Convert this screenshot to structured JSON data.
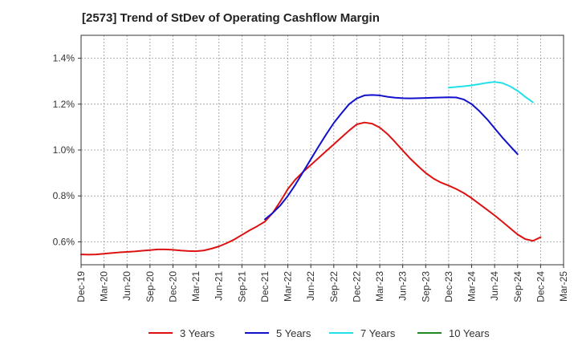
{
  "chart_data": {
    "type": "line",
    "title": "[2573]  Trend of StDev of Operating Cashflow Margin",
    "xlabel": "",
    "ylabel": "",
    "ylim": [
      0.5,
      1.5
    ],
    "y_ticks": [
      0.6,
      0.8,
      1.0,
      1.2,
      1.4
    ],
    "y_tick_labels": [
      "0.6%",
      "0.8%",
      "1.0%",
      "1.2%",
      "1.4%"
    ],
    "x_ticks": [
      "Dec-19",
      "Mar-20",
      "Jun-20",
      "Sep-20",
      "Dec-20",
      "Mar-21",
      "Jun-21",
      "Sep-21",
      "Dec-21",
      "Mar-22",
      "Jun-22",
      "Sep-22",
      "Dec-22",
      "Mar-23",
      "Jun-23",
      "Sep-23",
      "Dec-23",
      "Mar-24",
      "Jun-24",
      "Sep-24",
      "Dec-24",
      "Mar-25"
    ],
    "grid": true,
    "legend_position": "bottom",
    "series": [
      {
        "name": "3 Years",
        "color": "#dd1111",
        "points": [
          [
            "Dec-19",
            0.545
          ],
          [
            "Jan-20",
            0.544
          ],
          [
            "Feb-20",
            0.545
          ],
          [
            "Mar-20",
            0.548
          ],
          [
            "Apr-20",
            0.551
          ],
          [
            "May-20",
            0.554
          ],
          [
            "Jun-20",
            0.556
          ],
          [
            "Jul-20",
            0.558
          ],
          [
            "Aug-20",
            0.561
          ],
          [
            "Sep-20",
            0.564
          ],
          [
            "Oct-20",
            0.567
          ],
          [
            "Nov-20",
            0.567
          ],
          [
            "Dec-20",
            0.565
          ],
          [
            "Jan-21",
            0.562
          ],
          [
            "Feb-21",
            0.56
          ],
          [
            "Mar-21",
            0.559
          ],
          [
            "Apr-21",
            0.562
          ],
          [
            "May-21",
            0.57
          ],
          [
            "Jun-21",
            0.58
          ],
          [
            "Jul-21",
            0.594
          ],
          [
            "Aug-21",
            0.61
          ],
          [
            "Sep-21",
            0.63
          ],
          [
            "Oct-21",
            0.65
          ],
          [
            "Nov-21",
            0.668
          ],
          [
            "Dec-21",
            0.688
          ],
          [
            "Jan-22",
            0.725
          ],
          [
            "Feb-22",
            0.775
          ],
          [
            "Mar-22",
            0.83
          ],
          [
            "Apr-22",
            0.872
          ],
          [
            "May-22",
            0.905
          ],
          [
            "Jun-22",
            0.935
          ],
          [
            "Jul-22",
            0.965
          ],
          [
            "Aug-22",
            0.995
          ],
          [
            "Sep-22",
            1.025
          ],
          [
            "Oct-22",
            1.055
          ],
          [
            "Nov-22",
            1.085
          ],
          [
            "Dec-22",
            1.112
          ],
          [
            "Jan-23",
            1.12
          ],
          [
            "Feb-23",
            1.115
          ],
          [
            "Mar-23",
            1.098
          ],
          [
            "Apr-23",
            1.07
          ],
          [
            "May-23",
            1.035
          ],
          [
            "Jun-23",
            0.998
          ],
          [
            "Jul-23",
            0.962
          ],
          [
            "Aug-23",
            0.93
          ],
          [
            "Sep-23",
            0.9
          ],
          [
            "Oct-23",
            0.876
          ],
          [
            "Nov-23",
            0.858
          ],
          [
            "Dec-23",
            0.845
          ],
          [
            "Jan-24",
            0.83
          ],
          [
            "Feb-24",
            0.812
          ],
          [
            "Mar-24",
            0.79
          ],
          [
            "Apr-24",
            0.765
          ],
          [
            "May-24",
            0.74
          ],
          [
            "Jun-24",
            0.715
          ],
          [
            "Jul-24",
            0.688
          ],
          [
            "Aug-24",
            0.66
          ],
          [
            "Sep-24",
            0.632
          ],
          [
            "Oct-24",
            0.612
          ],
          [
            "Nov-24",
            0.604
          ],
          [
            "Dec-24",
            0.62
          ]
        ]
      },
      {
        "name": "5 Years",
        "color": "#1111cc",
        "points": [
          [
            "Dec-21",
            0.698
          ],
          [
            "Jan-22",
            0.725
          ],
          [
            "Feb-22",
            0.758
          ],
          [
            "Mar-22",
            0.8
          ],
          [
            "Apr-22",
            0.85
          ],
          [
            "May-22",
            0.905
          ],
          [
            "Jun-22",
            0.96
          ],
          [
            "Jul-22",
            1.015
          ],
          [
            "Aug-22",
            1.068
          ],
          [
            "Sep-22",
            1.118
          ],
          [
            "Oct-22",
            1.16
          ],
          [
            "Nov-22",
            1.2
          ],
          [
            "Dec-22",
            1.225
          ],
          [
            "Jan-23",
            1.238
          ],
          [
            "Feb-23",
            1.24
          ],
          [
            "Mar-23",
            1.238
          ],
          [
            "Apr-23",
            1.232
          ],
          [
            "May-23",
            1.228
          ],
          [
            "Jun-23",
            1.226
          ],
          [
            "Jul-23",
            1.225
          ],
          [
            "Aug-23",
            1.226
          ],
          [
            "Sep-23",
            1.227
          ],
          [
            "Oct-23",
            1.228
          ],
          [
            "Nov-23",
            1.229
          ],
          [
            "Dec-23",
            1.23
          ],
          [
            "Jan-24",
            1.229
          ],
          [
            "Feb-24",
            1.22
          ],
          [
            "Mar-24",
            1.2
          ],
          [
            "Apr-24",
            1.17
          ],
          [
            "May-24",
            1.135
          ],
          [
            "Jun-24",
            1.095
          ],
          [
            "Jul-24",
            1.055
          ],
          [
            "Aug-24",
            1.018
          ],
          [
            "Sep-24",
            0.982
          ]
        ]
      },
      {
        "name": "7 Years",
        "color": "#22e0e8",
        "points": [
          [
            "Dec-23",
            1.272
          ],
          [
            "Jan-24",
            1.275
          ],
          [
            "Feb-24",
            1.278
          ],
          [
            "Mar-24",
            1.282
          ],
          [
            "Apr-24",
            1.287
          ],
          [
            "May-24",
            1.293
          ],
          [
            "Jun-24",
            1.297
          ],
          [
            "Jul-24",
            1.292
          ],
          [
            "Aug-24",
            1.278
          ],
          [
            "Sep-24",
            1.258
          ],
          [
            "Oct-24",
            1.232
          ],
          [
            "Nov-24",
            1.208
          ]
        ]
      },
      {
        "name": "10 Years",
        "color": "#228822",
        "points": []
      }
    ]
  }
}
